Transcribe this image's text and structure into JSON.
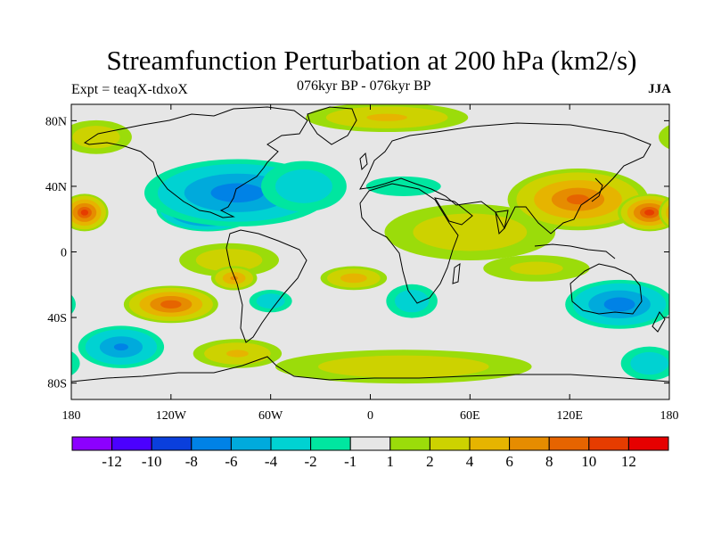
{
  "header": {
    "title": "Streamfunction Perturbation at 200 hPa (km2/s)",
    "left_label": "Expt = teaqX-tdxoX",
    "center_label": "076kyr BP - 076kyr BP",
    "right_label": "JJA"
  },
  "map": {
    "projection": "cylindrical-equidistant",
    "lon_range": [
      -180,
      180
    ],
    "lat_range": [
      -90,
      90
    ],
    "lat_ticks": [
      {
        "value": 80,
        "label": "80N"
      },
      {
        "value": 40,
        "label": "40N"
      },
      {
        "value": 0,
        "label": "0"
      },
      {
        "value": -40,
        "label": "40S"
      },
      {
        "value": -80,
        "label": "80S"
      }
    ],
    "lon_ticks": [
      {
        "value": -180,
        "label": "180"
      },
      {
        "value": -120,
        "label": "120W"
      },
      {
        "value": -60,
        "label": "60W"
      },
      {
        "value": 0,
        "label": "0"
      },
      {
        "value": 60,
        "label": "60E"
      },
      {
        "value": 120,
        "label": "120E"
      },
      {
        "value": 180,
        "label": "180"
      }
    ],
    "background_color": "#e6e6e6",
    "features": [
      {
        "lon": -98,
        "lat": 26,
        "value": -13,
        "rx": 32,
        "ry": 14
      },
      {
        "lon": -80,
        "lat": 36,
        "value": -7,
        "rx": 60,
        "ry": 22
      },
      {
        "lon": -40,
        "lat": 40,
        "value": -3,
        "rx": 30,
        "ry": 18
      },
      {
        "lon": 20,
        "lat": 40,
        "value": -1.5,
        "rx": 30,
        "ry": 8
      },
      {
        "lon": 60,
        "lat": 12,
        "value": 3,
        "rx": 60,
        "ry": 20
      },
      {
        "lon": 125,
        "lat": 32,
        "value": 8,
        "rx": 45,
        "ry": 20
      },
      {
        "lon": 168,
        "lat": 24,
        "value": 10,
        "rx": 20,
        "ry": 12
      },
      {
        "lon": -172,
        "lat": 24,
        "value": 10,
        "rx": 15,
        "ry": 12
      },
      {
        "lon": 10,
        "lat": 82,
        "value": 4,
        "rx": 55,
        "ry": 10
      },
      {
        "lon": -165,
        "lat": 70,
        "value": 3,
        "rx": 25,
        "ry": 12
      },
      {
        "lon": -85,
        "lat": -5,
        "value": 3,
        "rx": 35,
        "ry": 12
      },
      {
        "lon": -82,
        "lat": -16,
        "value": 6,
        "rx": 15,
        "ry": 8
      },
      {
        "lon": -10,
        "lat": -16,
        "value": 5,
        "rx": 22,
        "ry": 8
      },
      {
        "lon": -120,
        "lat": -32,
        "value": 9,
        "rx": 30,
        "ry": 12
      },
      {
        "lon": -150,
        "lat": -58,
        "value": -6,
        "rx": 28,
        "ry": 14
      },
      {
        "lon": -60,
        "lat": -30,
        "value": -3,
        "rx": 15,
        "ry": 8
      },
      {
        "lon": 25,
        "lat": -30,
        "value": -3,
        "rx": 18,
        "ry": 12
      },
      {
        "lon": 150,
        "lat": -32,
        "value": -7,
        "rx": 35,
        "ry": 16
      },
      {
        "lon": 100,
        "lat": -10,
        "value": 2,
        "rx": 40,
        "ry": 10
      },
      {
        "lon": 20,
        "lat": -70,
        "value": 3,
        "rx": 90,
        "ry": 12
      },
      {
        "lon": -80,
        "lat": -62,
        "value": 4,
        "rx": 30,
        "ry": 10
      },
      {
        "lon": 168,
        "lat": -68,
        "value": -3,
        "rx": 20,
        "ry": 12
      }
    ]
  },
  "colorbar": {
    "colors": [
      "#8c00ff",
      "#4b00ff",
      "#0a3fdc",
      "#0082e6",
      "#00aadc",
      "#00d2d2",
      "#00e6a0",
      "#e6e6e6",
      "#9bdc0a",
      "#cdd200",
      "#e6b400",
      "#e68c00",
      "#e66400",
      "#e63c00",
      "#e60000"
    ],
    "labels": [
      "-12",
      "-10",
      "-8",
      "-6",
      "-4",
      "-2",
      "-1",
      "1",
      "2",
      "4",
      "6",
      "8",
      "10",
      "12"
    ]
  }
}
